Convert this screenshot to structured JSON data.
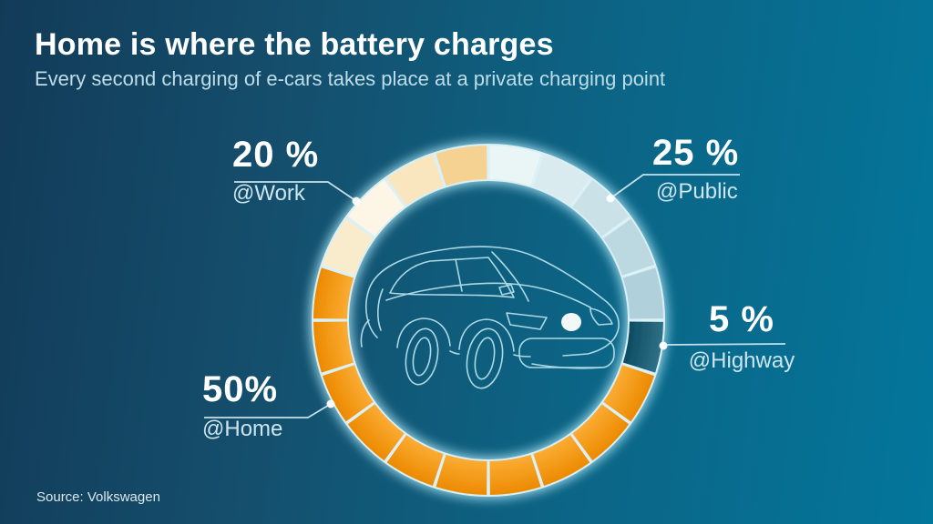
{
  "header": {
    "title": "Home is where the battery charges",
    "subtitle": "Every second charging of e-cars takes place at a private charging point"
  },
  "source": {
    "label": "Source: Volkswagen"
  },
  "chart_data": {
    "type": "pie",
    "title": "Home is where the battery charges",
    "subtitle": "Every second charging of e-cars takes place at a private charging point",
    "unit": "%",
    "ring_style": "segmented-donut, 20 slices of 5% each, clockwise from top",
    "legend_position": "callouts around ring",
    "segments": [
      {
        "label": "@Public",
        "value": 25,
        "display_value": "25 %",
        "slice_colors": [
          "#EAF5F6",
          "#DAEBEF",
          "#C9E1E7",
          "#BCD8E0",
          "#B0D1DB"
        ]
      },
      {
        "label": "@Highway",
        "value": 5,
        "display_value": "5 %",
        "gradient": {
          "inner": "#0B4A60",
          "outer": "#2F7187"
        }
      },
      {
        "label": "@Home",
        "value": 50,
        "display_value": "50%",
        "gradient": {
          "inner": "#FBAD36",
          "outer": "#EC8A00"
        }
      },
      {
        "label": "@Work",
        "value": 20,
        "display_value": "20 %",
        "slice_colors": [
          "#F9ECCD",
          "#FDF6E6",
          "#F9E5BE",
          "#F5D292"
        ]
      }
    ]
  },
  "colors": {
    "background_start": "#123B58",
    "background_end": "#03769B",
    "ring_glow": "#AEE8F8",
    "ring_gap": "#DFF2F7",
    "text_primary": "#FFFFFF",
    "text_secondary": "#CDE5EE",
    "car_outline": "#B5E0EA",
    "home_orange": "#F59B10",
    "highway_teal": "#16586F"
  }
}
